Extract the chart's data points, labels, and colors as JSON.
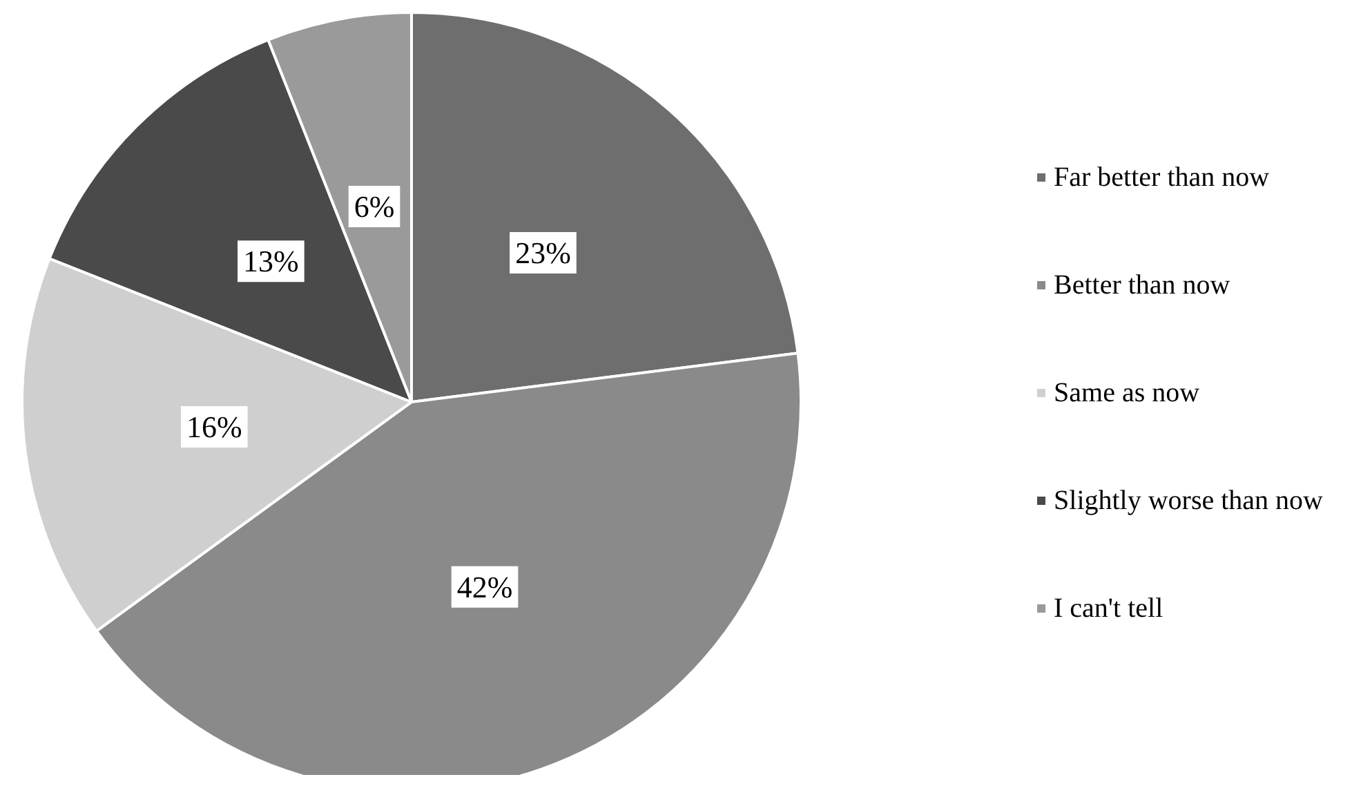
{
  "chart_data": {
    "type": "pie",
    "categories": [
      "Far better than now",
      "Better than now",
      "Same as now",
      "Slightly worse than now",
      "I can't tell"
    ],
    "values": [
      23,
      42,
      16,
      13,
      6
    ],
    "colors": [
      "#6e6e6e",
      "#8a8a8a",
      "#cfcfcf",
      "#4a4a4a",
      "#9a9a9a"
    ],
    "value_labels": [
      "23%",
      "42%",
      "16%",
      "13%",
      "6%"
    ],
    "legend": "right"
  }
}
